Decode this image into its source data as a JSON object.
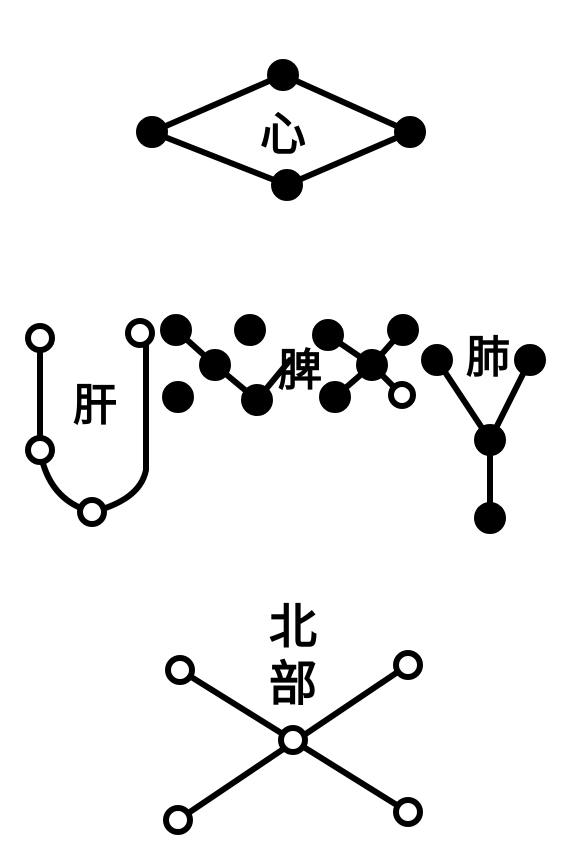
{
  "groups": {
    "xin": {
      "label": "心"
    },
    "gan": {
      "label": "肝"
    },
    "pi": {
      "label": "脾"
    },
    "fei": {
      "label": "肺"
    },
    "beibu": {
      "label_line1": "北",
      "label_line2": "部"
    }
  },
  "colors": {
    "ink": "#000000",
    "paper": "#ffffff"
  }
}
